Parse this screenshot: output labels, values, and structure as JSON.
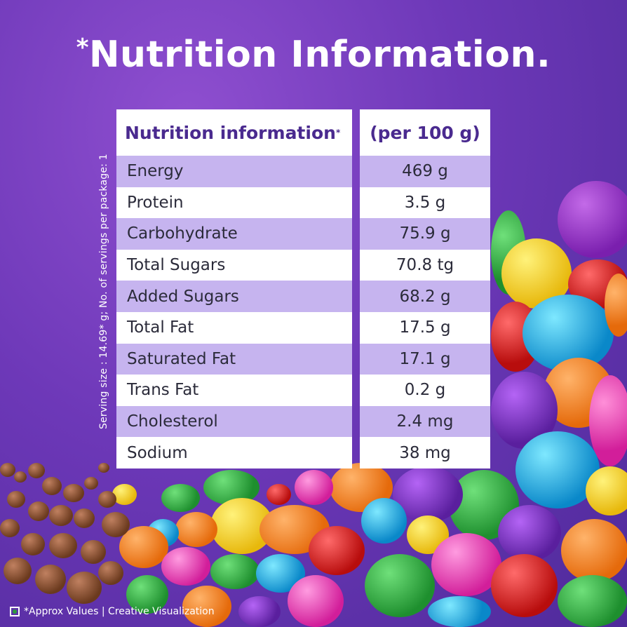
{
  "headline": {
    "asterisk": "*",
    "title": "Nutrition Information."
  },
  "side_note": "Serving size : 14.69* g; No. of servings per package: 1",
  "table": {
    "header_left": "Nutrition information",
    "header_left_mark": "*",
    "header_right": "(per 100 g)",
    "rows": [
      {
        "label": "Energy",
        "value": "469 g"
      },
      {
        "label": "Protein",
        "value": "3.5 g"
      },
      {
        "label": "Carbohydrate",
        "value": "75.9 g"
      },
      {
        "label": "Total Sugars",
        "value": "70.8 tg"
      },
      {
        "label": "Added Sugars",
        "value": "68.2 g"
      },
      {
        "label": "Total Fat",
        "value": "17.5 g"
      },
      {
        "label": "Saturated Fat",
        "value": "17.1 g"
      },
      {
        "label": "Trans Fat",
        "value": "0.2 g"
      },
      {
        "label": "Cholesterol",
        "value": "2.4 mg"
      },
      {
        "label": "Sodium",
        "value": "38 mg"
      }
    ]
  },
  "footer": {
    "text": "*Approx Values | Creative Visualization",
    "icon": "veg-mark-icon"
  },
  "colors": {
    "background": "#6d38b8",
    "row_alt": "#c6b4ef",
    "header_text": "#4a2a8f"
  }
}
